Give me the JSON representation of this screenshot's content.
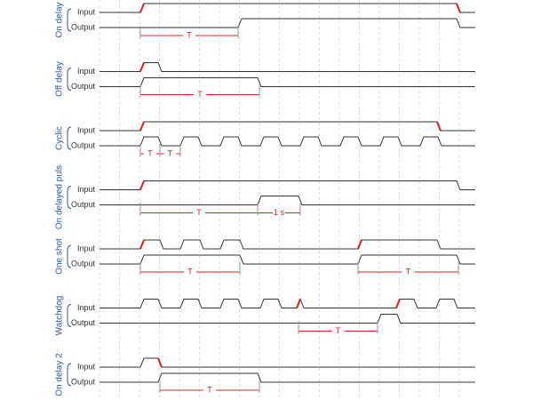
{
  "rows": [
    {
      "label": "On delay",
      "signals": [
        "Input",
        "Output"
      ],
      "annotations": [
        "T"
      ]
    },
    {
      "label": "Off delay",
      "signals": [
        "Input",
        "Output"
      ],
      "annotations": [
        "T"
      ]
    },
    {
      "label": "Cyclic",
      "signals": [
        "Input",
        "Output"
      ],
      "annotations": [
        "T",
        "T"
      ]
    },
    {
      "label": "On delayed puls",
      "signals": [
        "Input",
        "Output"
      ],
      "annotations": [
        "T",
        "1 s"
      ]
    },
    {
      "label": "One shot",
      "signals": [
        "Input",
        "Output"
      ],
      "annotations": [
        "T",
        "T"
      ]
    },
    {
      "label": "Watchdog",
      "signals": [
        "Input",
        "Output"
      ],
      "annotations": [
        "T"
      ]
    },
    {
      "label": "On delay 2",
      "signals": [
        "Input",
        "Output"
      ],
      "annotations": [
        "T"
      ]
    }
  ]
}
